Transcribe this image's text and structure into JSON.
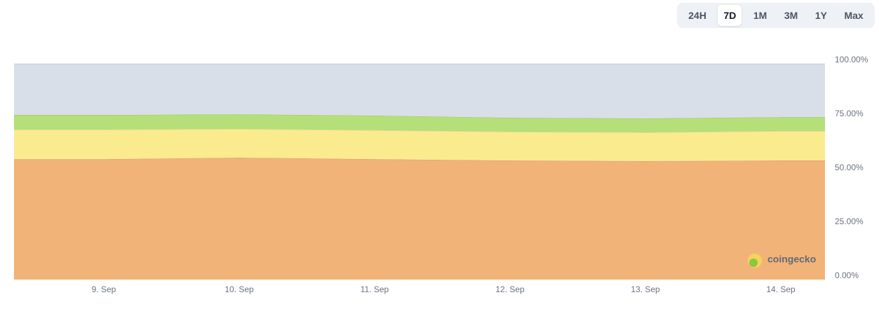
{
  "range_buttons": [
    {
      "label": "24H"
    },
    {
      "label": "7D",
      "active": true
    },
    {
      "label": "1M"
    },
    {
      "label": "3M"
    },
    {
      "label": "1Y"
    },
    {
      "label": "Max"
    }
  ],
  "chart_data": {
    "type": "stacked-area",
    "categories": [
      "9. Sep",
      "10. Sep",
      "11. Sep",
      "12. Sep",
      "13. Sep",
      "14. Sep"
    ],
    "series": [
      {
        "color": "#f2b378",
        "values": [
          55.8,
          56.5,
          55.8,
          55.2,
          54.9,
          55.2
        ]
      },
      {
        "color": "#fbeb8f",
        "values": [
          13.7,
          13.3,
          13.4,
          13.3,
          13.3,
          13.6
        ]
      },
      {
        "color": "#b5df79",
        "values": [
          6.8,
          6.8,
          6.8,
          6.5,
          6.5,
          6.5
        ]
      },
      {
        "color": "#d8dfe8",
        "values": [
          23.7,
          23.4,
          24.0,
          25.0,
          25.3,
          24.7
        ]
      }
    ],
    "ylim": [
      0,
      100
    ],
    "yticks": [
      {
        "value": 0,
        "label": "0.00%"
      },
      {
        "value": 25,
        "label": "25.00%"
      },
      {
        "value": 50,
        "label": "50.00%"
      },
      {
        "value": 75,
        "label": "75.00%"
      },
      {
        "value": 100,
        "label": "100.00%"
      }
    ],
    "watermark": "coingecko"
  }
}
